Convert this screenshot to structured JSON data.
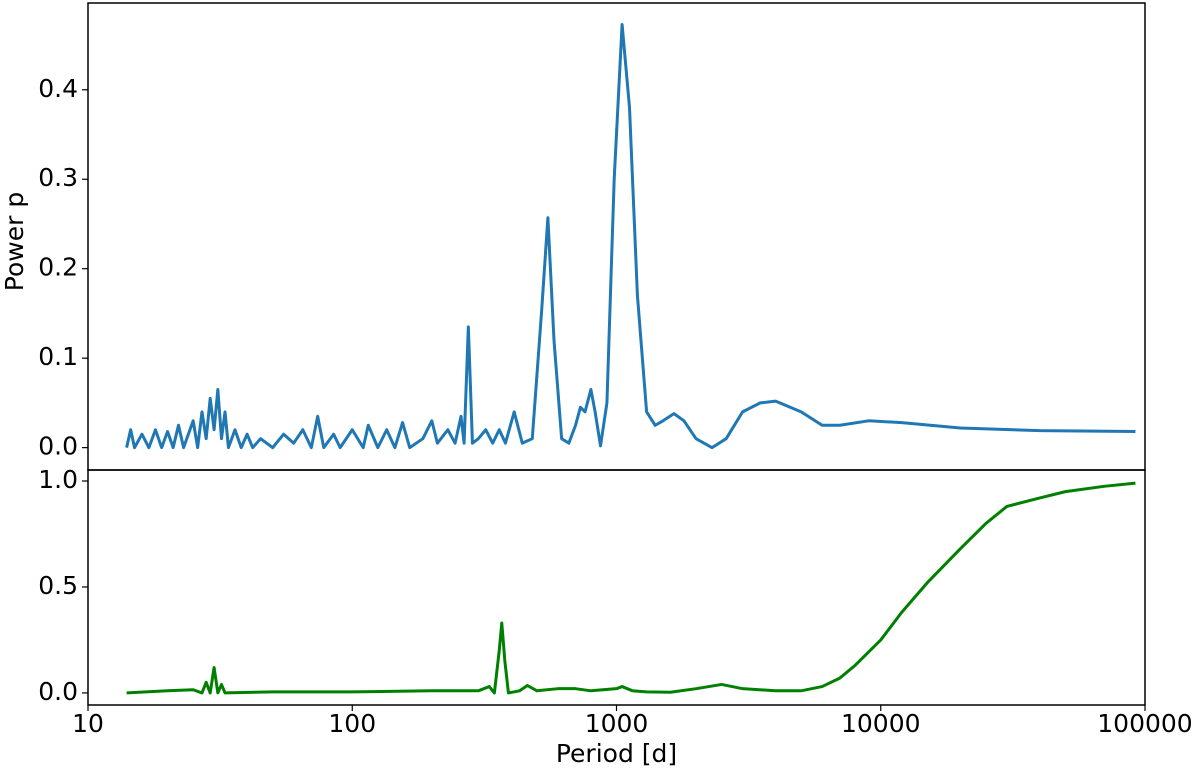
{
  "chart_data": [
    {
      "type": "line",
      "y_label": "Power p",
      "xscale": "log",
      "xlim": [
        10,
        100000
      ],
      "ylim": [
        -0.025,
        0.497
      ],
      "yticks": [
        {
          "value": 0,
          "label": "0.0"
        },
        0.1,
        0.2,
        0.3,
        0.4
      ],
      "x": [
        14,
        14.5,
        15,
        16,
        17,
        18,
        19,
        20,
        21,
        22,
        23,
        25,
        26,
        27,
        28,
        29,
        30,
        31,
        32,
        33,
        34,
        36,
        38,
        40,
        42,
        45,
        50,
        55,
        60,
        65,
        70,
        74,
        78,
        85,
        90,
        100,
        110,
        115,
        125,
        135,
        145,
        155,
        165,
        185,
        200,
        210,
        230,
        245,
        258,
        265,
        275,
        285,
        300,
        320,
        340,
        360,
        380,
        410,
        440,
        480,
        520,
        550,
        580,
        620,
        660,
        700,
        730,
        760,
        800,
        830,
        870,
        920,
        980,
        1050,
        1120,
        1200,
        1300,
        1400,
        1500,
        1650,
        1800,
        2000,
        2300,
        2600,
        3000,
        3500,
        4000,
        5000,
        6000,
        7000,
        9000,
        12000,
        20000,
        40000,
        92000
      ],
      "series": [
        {
          "color": "#1f77b4",
          "values": [
            0,
            0.02,
            0,
            0.015,
            0,
            0.02,
            0,
            0.018,
            0,
            0.025,
            0,
            0.03,
            0,
            0.04,
            0.01,
            0.055,
            0.02,
            0.065,
            0.01,
            0.04,
            0,
            0.02,
            0,
            0.015,
            0,
            0.01,
            0,
            0.015,
            0.005,
            0.02,
            0,
            0.035,
            0,
            0.015,
            0,
            0.02,
            0,
            0.025,
            0,
            0.02,
            0,
            0.028,
            0,
            0.01,
            0.03,
            0.005,
            0.02,
            0.005,
            0.035,
            0.005,
            0.135,
            0.005,
            0.01,
            0.02,
            0.005,
            0.02,
            0.005,
            0.04,
            0.005,
            0.01,
            0.15,
            0.257,
            0.12,
            0.01,
            0.005,
            0.025,
            0.045,
            0.04,
            0.065,
            0.04,
            0.002,
            0.05,
            0.3,
            0.473,
            0.38,
            0.17,
            0.04,
            0.025,
            0.03,
            0.038,
            0.03,
            0.01,
            0,
            0.01,
            0.04,
            0.05,
            0.052,
            0.04,
            0.025,
            0.025,
            0.03,
            0.028,
            0.022,
            0.019,
            0.018
          ]
        }
      ]
    },
    {
      "type": "line",
      "x_label": "Period [d]",
      "xscale": "log",
      "xlim": [
        10,
        100000
      ],
      "xticks": [
        10,
        100,
        1000,
        10000,
        100000
      ],
      "ylim": [
        -0.057,
        1.052
      ],
      "yticks": [
        {
          "value": 0,
          "label": "0.0"
        },
        0.5,
        {
          "value": 1,
          "label": "1.0"
        }
      ],
      "x": [
        14,
        20,
        25,
        27,
        28,
        29,
        30,
        31,
        32,
        33,
        50,
        100,
        200,
        300,
        330,
        345,
        360,
        368,
        378,
        390,
        430,
        460,
        500,
        600,
        700,
        800,
        1000,
        1050,
        1150,
        1300,
        1600,
        2000,
        2500,
        3000,
        4000,
        5000,
        6000,
        7000,
        8000,
        10000,
        12000,
        15000,
        20000,
        25000,
        30000,
        40000,
        50000,
        70000,
        92000
      ],
      "series": [
        {
          "color": "#008000",
          "values": [
            0,
            0.01,
            0.015,
            0,
            0.05,
            0,
            0.12,
            0,
            0.04,
            0,
            0.005,
            0.005,
            0.01,
            0.01,
            0.03,
            0,
            0.2,
            0.33,
            0.15,
            0,
            0.01,
            0.035,
            0.01,
            0.02,
            0.02,
            0.01,
            0.02,
            0.03,
            0.01,
            0.005,
            0.003,
            0.02,
            0.04,
            0.02,
            0.01,
            0.01,
            0.03,
            0.07,
            0.13,
            0.25,
            0.38,
            0.52,
            0.68,
            0.8,
            0.88,
            0.92,
            0.95,
            0.975,
            0.99
          ]
        }
      ]
    }
  ]
}
